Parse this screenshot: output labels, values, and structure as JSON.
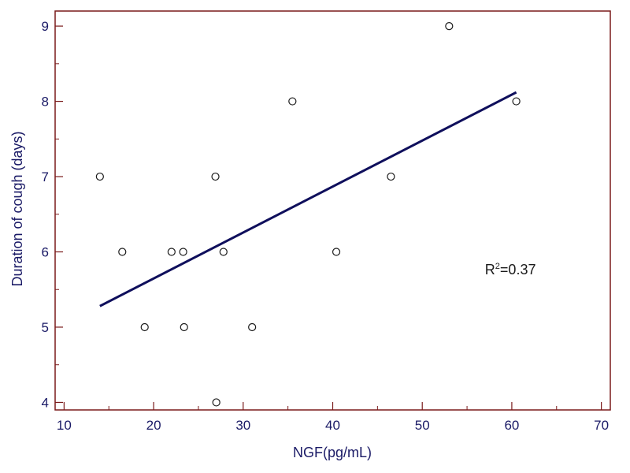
{
  "chart_data": {
    "type": "scatter",
    "xlabel": "NGF(pg/mL)",
    "ylabel": "Duration of cough (days)",
    "xlim": [
      9,
      71
    ],
    "ylim": [
      3.9,
      9.2
    ],
    "xticks": [
      10,
      20,
      30,
      40,
      50,
      60,
      70
    ],
    "yticks": [
      4,
      5,
      6,
      7,
      8,
      9
    ],
    "annotation": {
      "prefix": "R",
      "sup": "2",
      "suffix": "=0.37",
      "x": 57,
      "y": 5.7
    },
    "points": [
      {
        "x": 14,
        "y": 7
      },
      {
        "x": 16.5,
        "y": 6
      },
      {
        "x": 19,
        "y": 5
      },
      {
        "x": 22,
        "y": 6
      },
      {
        "x": 23.3,
        "y": 6
      },
      {
        "x": 23.4,
        "y": 5
      },
      {
        "x": 26.9,
        "y": 7
      },
      {
        "x": 27,
        "y": 4
      },
      {
        "x": 27.8,
        "y": 6
      },
      {
        "x": 31,
        "y": 5
      },
      {
        "x": 35.5,
        "y": 8
      },
      {
        "x": 40.4,
        "y": 6
      },
      {
        "x": 46.5,
        "y": 7
      },
      {
        "x": 53,
        "y": 9
      },
      {
        "x": 60.5,
        "y": 8
      }
    ],
    "trendline": {
      "x": [
        14,
        60.5
      ],
      "y": [
        5.28,
        8.12
      ]
    },
    "colors": {
      "frame": "#7a1a1a",
      "text": "#1a1a66",
      "line": "#0f0f5c",
      "marker": "#1a1a1a"
    }
  }
}
